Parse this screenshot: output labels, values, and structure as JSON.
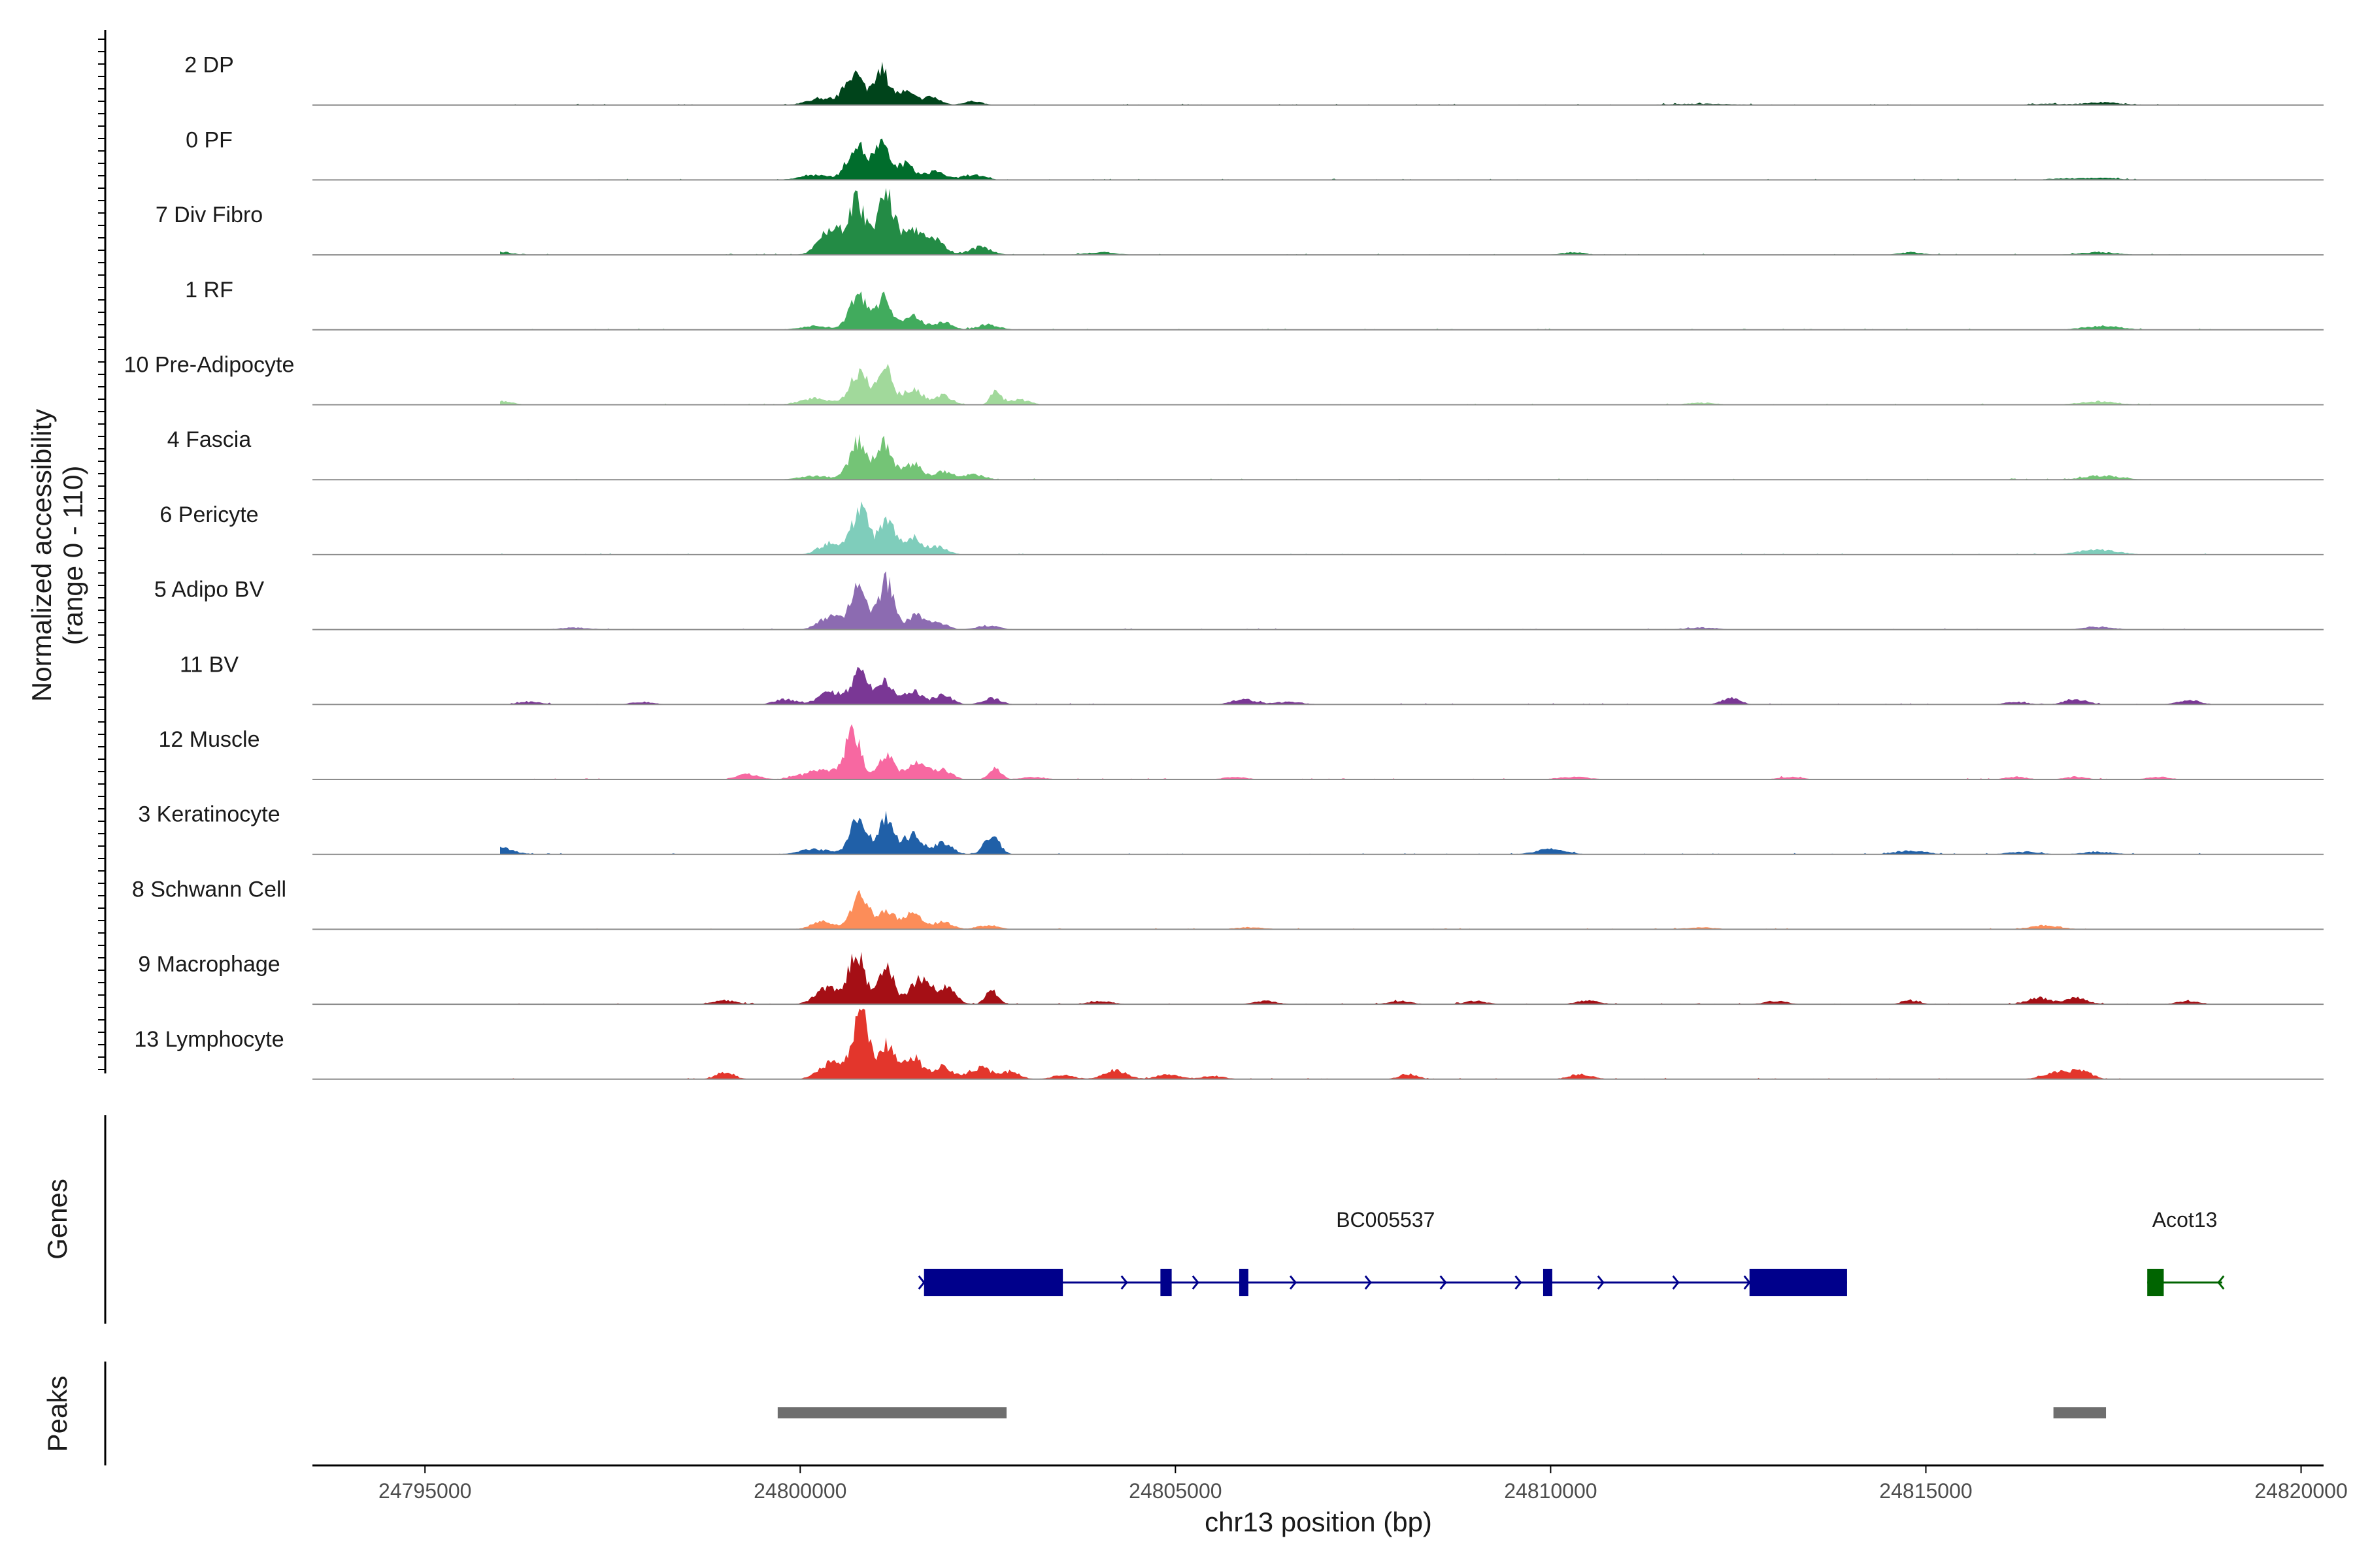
{
  "chart_data": {
    "type": "area",
    "title": "",
    "ylabel_line1": "Normalized accessibility",
    "ylabel_line2": "(range 0 - 110)",
    "ylim": [
      0,
      110
    ],
    "xlabel": "chr13 position (bp)",
    "xlim": [
      24793500,
      24820300
    ],
    "x_ticks": [
      24795000,
      24800000,
      24805000,
      24810000,
      24815000,
      24820000
    ],
    "x_tick_labels": [
      "24795000",
      "24800000",
      "24805000",
      "24810000",
      "24815000",
      "24820000"
    ],
    "tracks": [
      {
        "label": "2 DP",
        "color": "#00441b",
        "peaks": [
          [
            24800720,
            48,
            120
          ],
          [
            24801080,
            55,
            100
          ],
          [
            24801400,
            20,
            120
          ],
          [
            24801750,
            12,
            120
          ],
          [
            24800300,
            10,
            200
          ],
          [
            24802300,
            6,
            120
          ],
          [
            24817350,
            4,
            250
          ],
          [
            24816600,
            2,
            200
          ],
          [
            24812000,
            2,
            400
          ]
        ]
      },
      {
        "label": "0 PF",
        "color": "#006d2c",
        "peaks": [
          [
            24800750,
            55,
            120
          ],
          [
            24801080,
            53,
            100
          ],
          [
            24801400,
            24,
            120
          ],
          [
            24801800,
            14,
            120
          ],
          [
            24802300,
            8,
            150
          ],
          [
            24800200,
            8,
            200
          ],
          [
            24817350,
            3,
            250
          ],
          [
            24816800,
            2,
            200
          ]
        ]
      },
      {
        "label": "7 Div Fibro",
        "color": "#238b45",
        "peaks": [
          [
            24800760,
            80,
            120
          ],
          [
            24801150,
            95,
            110
          ],
          [
            24800400,
            40,
            150
          ],
          [
            24801500,
            38,
            120
          ],
          [
            24801800,
            22,
            120
          ],
          [
            24802400,
            12,
            150
          ],
          [
            24796000,
            5,
            150
          ],
          [
            24804000,
            4,
            200
          ],
          [
            24810300,
            4,
            150
          ],
          [
            24814800,
            4,
            150
          ],
          [
            24817300,
            4,
            250
          ]
        ]
      },
      {
        "label": "1 RF",
        "color": "#41ab5d",
        "peaks": [
          [
            24800780,
            55,
            120
          ],
          [
            24801120,
            52,
            100
          ],
          [
            24801500,
            22,
            120
          ],
          [
            24801900,
            12,
            120
          ],
          [
            24802500,
            8,
            150
          ],
          [
            24800200,
            6,
            200
          ],
          [
            24817350,
            6,
            250
          ]
        ]
      },
      {
        "label": "10 Pre-Adipocyte",
        "color": "#a1d99b",
        "peaks": [
          [
            24800780,
            52,
            120
          ],
          [
            24801130,
            55,
            100
          ],
          [
            24801500,
            25,
            120
          ],
          [
            24801900,
            15,
            120
          ],
          [
            24802600,
            20,
            70
          ],
          [
            24800200,
            10,
            200
          ],
          [
            24802900,
            8,
            150
          ],
          [
            24796000,
            6,
            150
          ],
          [
            24817300,
            5,
            250
          ],
          [
            24812000,
            3,
            200
          ]
        ]
      },
      {
        "label": "4 Fascia",
        "color": "#74c476",
        "peaks": [
          [
            24800780,
            58,
            120
          ],
          [
            24801130,
            55,
            100
          ],
          [
            24801500,
            25,
            120
          ],
          [
            24801900,
            12,
            120
          ],
          [
            24802300,
            8,
            150
          ],
          [
            24800200,
            6,
            200
          ],
          [
            24817350,
            6,
            250
          ]
        ]
      },
      {
        "label": "6 Pericyte",
        "color": "#7fcdbb",
        "peaks": [
          [
            24800800,
            70,
            110
          ],
          [
            24801150,
            55,
            100
          ],
          [
            24800400,
            18,
            150
          ],
          [
            24801500,
            28,
            120
          ],
          [
            24801850,
            12,
            120
          ],
          [
            24817300,
            8,
            250
          ]
        ]
      },
      {
        "label": "5 Adipo BV",
        "color": "#8c6bb1",
        "peaks": [
          [
            24800780,
            68,
            110
          ],
          [
            24801150,
            75,
            100
          ],
          [
            24800400,
            20,
            150
          ],
          [
            24801550,
            22,
            120
          ],
          [
            24801850,
            10,
            120
          ],
          [
            24802500,
            6,
            150
          ],
          [
            24817300,
            4,
            200
          ],
          [
            24797000,
            3,
            200
          ],
          [
            24812000,
            3,
            200
          ]
        ]
      },
      {
        "label": "11 BV",
        "color": "#7a3795",
        "peaks": [
          [
            24800800,
            55,
            110
          ],
          [
            24800400,
            20,
            150
          ],
          [
            24801150,
            35,
            100
          ],
          [
            24801500,
            20,
            120
          ],
          [
            24801900,
            15,
            120
          ],
          [
            24802550,
            10,
            120
          ],
          [
            24799800,
            8,
            150
          ],
          [
            24805900,
            8,
            150
          ],
          [
            24812400,
            10,
            120
          ],
          [
            24817000,
            8,
            150
          ],
          [
            24818500,
            7,
            150
          ],
          [
            24796400,
            4,
            150
          ],
          [
            24797900,
            4,
            150
          ],
          [
            24806500,
            4,
            200
          ],
          [
            24816200,
            4,
            150
          ]
        ]
      },
      {
        "label": "12 Muscle",
        "color": "#f768a1",
        "peaks": [
          [
            24800700,
            70,
            110
          ],
          [
            24801150,
            40,
            100
          ],
          [
            24800300,
            15,
            150
          ],
          [
            24801550,
            30,
            120
          ],
          [
            24801900,
            15,
            120
          ],
          [
            24802600,
            18,
            80
          ],
          [
            24799300,
            8,
            150
          ],
          [
            24800000,
            5,
            150
          ],
          [
            24803100,
            4,
            150
          ],
          [
            24805800,
            4,
            150
          ],
          [
            24810300,
            4,
            200
          ],
          [
            24813200,
            4,
            150
          ],
          [
            24816200,
            4,
            150
          ],
          [
            24817000,
            4,
            150
          ],
          [
            24818100,
            4,
            150
          ]
        ]
      },
      {
        "label": "3 Keratinocyte",
        "color": "#2060a8",
        "peaks": [
          [
            24800780,
            58,
            110
          ],
          [
            24801150,
            58,
            100
          ],
          [
            24801500,
            30,
            120
          ],
          [
            24801900,
            18,
            120
          ],
          [
            24802550,
            30,
            100
          ],
          [
            24796000,
            10,
            180
          ],
          [
            24800200,
            8,
            200
          ],
          [
            24810000,
            8,
            200
          ],
          [
            24814800,
            6,
            200
          ],
          [
            24816300,
            4,
            200
          ],
          [
            24817300,
            4,
            200
          ]
        ]
      },
      {
        "label": "8 Schwann Cell",
        "color": "#fc8d59",
        "peaks": [
          [
            24800800,
            58,
            110
          ],
          [
            24801150,
            30,
            100
          ],
          [
            24800300,
            12,
            150
          ],
          [
            24801500,
            25,
            120
          ],
          [
            24801900,
            12,
            120
          ],
          [
            24802500,
            6,
            150
          ],
          [
            24816600,
            6,
            200
          ],
          [
            24806000,
            3,
            200
          ],
          [
            24812000,
            3,
            200
          ]
        ]
      },
      {
        "label": "9 Macrophage",
        "color": "#a50f15",
        "peaks": [
          [
            24800750,
            78,
            110
          ],
          [
            24801150,
            55,
            100
          ],
          [
            24800350,
            25,
            150
          ],
          [
            24801600,
            40,
            130
          ],
          [
            24801950,
            25,
            120
          ],
          [
            24802550,
            22,
            80
          ],
          [
            24799000,
            6,
            150
          ],
          [
            24816500,
            10,
            150
          ],
          [
            24817000,
            10,
            150
          ],
          [
            24804000,
            5,
            150
          ],
          [
            24806200,
            5,
            150
          ],
          [
            24808000,
            5,
            150
          ],
          [
            24809000,
            5,
            150
          ],
          [
            24810500,
            6,
            150
          ],
          [
            24813000,
            5,
            150
          ],
          [
            24814800,
            6,
            120
          ],
          [
            24818500,
            5,
            150
          ]
        ]
      },
      {
        "label": "13 Lymphocyte",
        "color": "#e3362c",
        "peaks": [
          [
            24800800,
            100,
            110
          ],
          [
            24801150,
            55,
            100
          ],
          [
            24800400,
            25,
            150
          ],
          [
            24801500,
            35,
            120
          ],
          [
            24801900,
            20,
            120
          ],
          [
            24802400,
            18,
            150
          ],
          [
            24802800,
            12,
            120
          ],
          [
            24799000,
            10,
            120
          ],
          [
            24803500,
            6,
            150
          ],
          [
            24804200,
            14,
            150
          ],
          [
            24804900,
            8,
            150
          ],
          [
            24805500,
            5,
            150
          ],
          [
            24808100,
            8,
            120
          ],
          [
            24810400,
            8,
            150
          ],
          [
            24816800,
            12,
            200
          ],
          [
            24817100,
            10,
            120
          ]
        ]
      }
    ],
    "genes": [
      {
        "name": "BC005537",
        "color": "#00008b",
        "strand": "+",
        "start": 24801650,
        "end": 24813950,
        "exons": [
          [
            24801650,
            24803500
          ],
          [
            24804800,
            24804950
          ],
          [
            24805850,
            24805950
          ],
          [
            24809900,
            24810000
          ],
          [
            24812650,
            24813950
          ]
        ],
        "arrows": [
          24801650,
          24804350,
          24805300,
          24806600,
          24807600,
          24808600,
          24809600,
          24810700,
          24811700,
          24812650
        ]
      },
      {
        "name": "Acot13",
        "color": "#006400",
        "strand": "-",
        "start": 24817950,
        "end": 24818950,
        "exons": [
          [
            24817950,
            24818170
          ]
        ],
        "arrows": [
          24818900
        ]
      }
    ],
    "peaks": [
      [
        24799700,
        24802750
      ],
      [
        24816700,
        24817400
      ]
    ],
    "peak_color": "#6e6e6e",
    "genes_label": "Genes",
    "peaks_label": "Peaks"
  }
}
